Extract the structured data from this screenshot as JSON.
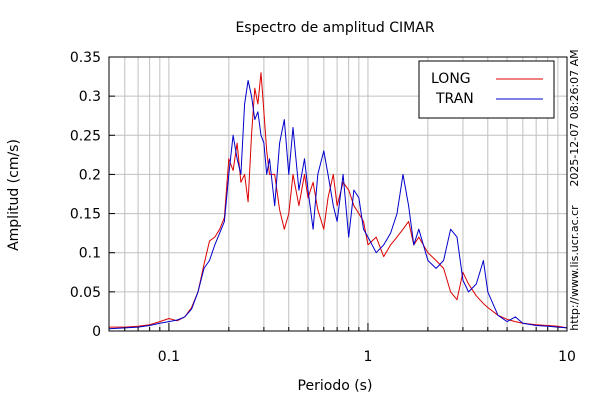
{
  "chart_data": {
    "type": "line",
    "title": "Espectro de amplitud CIMAR",
    "xlabel": "Periodo (s)",
    "ylabel": "Amplitud (cm/s)",
    "xscale": "log",
    "xlim": [
      0.05,
      10
    ],
    "ylim": [
      0,
      0.35
    ],
    "xticks": [
      {
        "value": 0.1,
        "label": "0.1"
      },
      {
        "value": 1,
        "label": "1"
      },
      {
        "value": 10,
        "label": "10"
      }
    ],
    "yticks": [
      {
        "value": 0,
        "label": "0"
      },
      {
        "value": 0.05,
        "label": "0.05"
      },
      {
        "value": 0.1,
        "label": "0.1"
      },
      {
        "value": 0.15,
        "label": "0.15"
      },
      {
        "value": 0.2,
        "label": "0.2"
      },
      {
        "value": 0.25,
        "label": "0.25"
      },
      {
        "value": 0.3,
        "label": "0.3"
      },
      {
        "value": 0.35,
        "label": "0.35"
      }
    ],
    "grid": true,
    "legend_position": "top-right",
    "annotations": {
      "timestamp": "2025-12-07 08:26:07 AM",
      "url": "http://www.lis.ucr.ac.cr"
    },
    "series": [
      {
        "name": "LONG",
        "color": "#dd0000",
        "x": [
          0.05,
          0.06,
          0.07,
          0.08,
          0.09,
          0.1,
          0.11,
          0.12,
          0.13,
          0.14,
          0.15,
          0.16,
          0.17,
          0.18,
          0.19,
          0.2,
          0.21,
          0.22,
          0.23,
          0.24,
          0.25,
          0.26,
          0.27,
          0.28,
          0.29,
          0.3,
          0.31,
          0.32,
          0.34,
          0.36,
          0.38,
          0.4,
          0.42,
          0.45,
          0.48,
          0.5,
          0.53,
          0.56,
          0.6,
          0.63,
          0.67,
          0.7,
          0.75,
          0.8,
          0.85,
          0.9,
          0.95,
          1.0,
          1.1,
          1.2,
          1.3,
          1.4,
          1.5,
          1.6,
          1.7,
          1.8,
          2.0,
          2.2,
          2.4,
          2.6,
          2.8,
          3.0,
          3.2,
          3.5,
          3.8,
          4.0,
          4.5,
          5.0,
          5.5,
          6.0,
          7.0,
          8.0,
          9.0,
          10.0
        ],
        "values": [
          0.005,
          0.005,
          0.006,
          0.008,
          0.012,
          0.016,
          0.013,
          0.018,
          0.03,
          0.05,
          0.085,
          0.115,
          0.12,
          0.13,
          0.145,
          0.22,
          0.205,
          0.24,
          0.19,
          0.2,
          0.165,
          0.25,
          0.31,
          0.29,
          0.33,
          0.28,
          0.23,
          0.2,
          0.2,
          0.155,
          0.13,
          0.15,
          0.2,
          0.16,
          0.2,
          0.17,
          0.19,
          0.155,
          0.13,
          0.17,
          0.2,
          0.16,
          0.19,
          0.18,
          0.16,
          0.15,
          0.14,
          0.11,
          0.12,
          0.095,
          0.11,
          0.12,
          0.13,
          0.14,
          0.11,
          0.12,
          0.1,
          0.09,
          0.08,
          0.05,
          0.04,
          0.075,
          0.06,
          0.045,
          0.035,
          0.03,
          0.02,
          0.015,
          0.012,
          0.01,
          0.008,
          0.007,
          0.006,
          0.004
        ]
      },
      {
        "name": "TRAN",
        "color": "#0000cc",
        "x": [
          0.05,
          0.06,
          0.07,
          0.08,
          0.09,
          0.1,
          0.11,
          0.12,
          0.13,
          0.14,
          0.15,
          0.16,
          0.17,
          0.18,
          0.19,
          0.2,
          0.21,
          0.22,
          0.23,
          0.24,
          0.25,
          0.26,
          0.27,
          0.28,
          0.29,
          0.3,
          0.31,
          0.32,
          0.34,
          0.36,
          0.38,
          0.4,
          0.42,
          0.45,
          0.48,
          0.5,
          0.53,
          0.56,
          0.6,
          0.63,
          0.67,
          0.7,
          0.75,
          0.8,
          0.85,
          0.9,
          0.95,
          1.0,
          1.1,
          1.2,
          1.3,
          1.4,
          1.5,
          1.6,
          1.7,
          1.8,
          2.0,
          2.2,
          2.4,
          2.6,
          2.8,
          3.0,
          3.2,
          3.5,
          3.8,
          4.0,
          4.5,
          5.0,
          5.5,
          6.0,
          7.0,
          8.0,
          9.0,
          10.0
        ],
        "values": [
          0.003,
          0.004,
          0.005,
          0.007,
          0.01,
          0.012,
          0.014,
          0.018,
          0.028,
          0.05,
          0.08,
          0.09,
          0.11,
          0.125,
          0.14,
          0.2,
          0.25,
          0.22,
          0.2,
          0.29,
          0.32,
          0.3,
          0.27,
          0.28,
          0.25,
          0.24,
          0.2,
          0.22,
          0.16,
          0.24,
          0.27,
          0.2,
          0.26,
          0.18,
          0.22,
          0.18,
          0.13,
          0.2,
          0.23,
          0.2,
          0.16,
          0.14,
          0.2,
          0.12,
          0.18,
          0.17,
          0.13,
          0.12,
          0.1,
          0.11,
          0.125,
          0.15,
          0.2,
          0.16,
          0.11,
          0.13,
          0.09,
          0.08,
          0.09,
          0.13,
          0.12,
          0.065,
          0.05,
          0.06,
          0.09,
          0.05,
          0.02,
          0.012,
          0.018,
          0.01,
          0.007,
          0.006,
          0.005,
          0.004
        ]
      }
    ]
  }
}
